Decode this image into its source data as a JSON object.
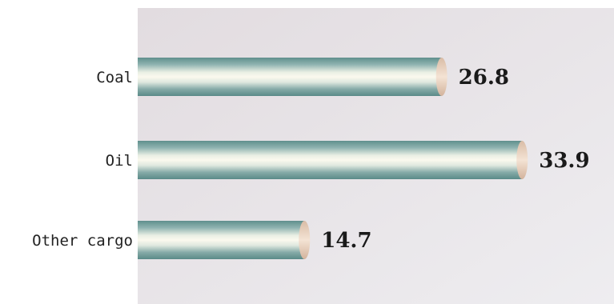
{
  "chart_data": {
    "type": "bar",
    "orientation": "horizontal",
    "categories": [
      "Coal",
      "Oil",
      "Other cargo"
    ],
    "values": [
      26.8,
      33.9,
      14.7
    ],
    "xlim": [
      0,
      42
    ],
    "grid": false,
    "colors": {
      "background_top": "#e4dfe2",
      "background_bottom": "#eceaee",
      "bar_dark": "#6b9a98",
      "bar_mid": "#a9c6c2",
      "bar_light": "#f6f4e8",
      "bar_cap": "#ead2bf"
    }
  }
}
